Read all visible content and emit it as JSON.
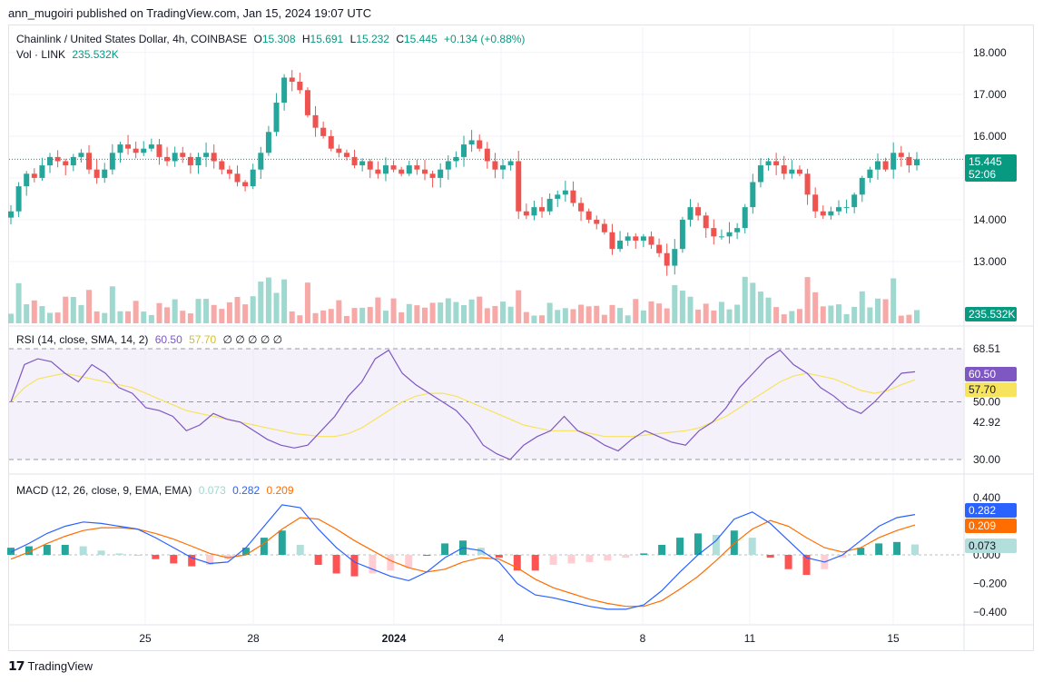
{
  "header": {
    "published": "ann_mugoiri published on TradingView.com, Jan 15, 2024 19:07 UTC"
  },
  "main": {
    "title": "Chainlink / United States Dollar, 4h, COINBASE",
    "o_label": "O",
    "o": "15.308",
    "h_label": "H",
    "h": "15.691",
    "l_label": "L",
    "l": "15.232",
    "c_label": "C",
    "c": "15.445",
    "change": "+0.134 (+0.88%)",
    "vol_label": "Vol · LINK",
    "vol": "235.532K",
    "price_badge": "15.445",
    "countdown_badge": "52:06",
    "vol_badge": "235.532K"
  },
  "rsi": {
    "label": "RSI (14, close, SMA, 14, 2)",
    "value": "60.50",
    "sma": "57.70",
    "extra": "∅ ∅ ∅ ∅ ∅",
    "value_badge": "60.50",
    "sma_badge": "57.70"
  },
  "macd": {
    "label": "MACD (12, 26, close, 9, EMA, EMA)",
    "hist": "0.073",
    "macd": "0.282",
    "signal": "0.209",
    "macd_badge": "0.282",
    "signal_badge": "0.209",
    "hist_badge": "0.073"
  },
  "footer": {
    "brand": "TradingView"
  },
  "colors": {
    "up": "#26a69a",
    "down": "#ef5350",
    "rsi": "#7e57c2",
    "rsi_sma": "#f7e35c",
    "macd": "#2962ff",
    "signal": "#ff6d00",
    "hist_up": "#26a69a",
    "hist_up_light": "#b2dfdb",
    "hist_down": "#ff5252",
    "hist_down_light": "#ffcdd2"
  },
  "chart_data": [
    {
      "type": "candlestick",
      "title": "Chainlink / United States Dollar, 4h, COINBASE",
      "x_ticks": [
        "25",
        "28",
        "2024",
        "4",
        "8",
        "11",
        "15"
      ],
      "y_ticks": [
        "18.000",
        "17.000",
        "16.000",
        "15.000",
        "14.000",
        "13.000"
      ],
      "ylim": [
        12.0,
        18.3
      ],
      "close_series": [
        14.2,
        14.8,
        15.1,
        15.0,
        15.3,
        15.5,
        15.4,
        15.3,
        15.5,
        15.6,
        15.2,
        15.0,
        15.2,
        15.6,
        15.8,
        15.7,
        15.6,
        15.7,
        15.8,
        15.5,
        15.4,
        15.6,
        15.5,
        15.3,
        15.5,
        15.6,
        15.4,
        15.2,
        15.1,
        14.9,
        14.8,
        15.2,
        15.6,
        16.1,
        16.8,
        17.4,
        17.3,
        17.1,
        16.5,
        16.2,
        16.0,
        15.7,
        15.6,
        15.5,
        15.3,
        15.4,
        15.2,
        15.1,
        15.3,
        15.2,
        15.1,
        15.3,
        15.2,
        15.1,
        15.0,
        15.2,
        15.4,
        15.5,
        15.8,
        15.9,
        15.7,
        15.4,
        15.2,
        15.3,
        15.4,
        14.2,
        14.1,
        14.3,
        14.2,
        14.5,
        14.6,
        14.7,
        14.4,
        14.2,
        14.0,
        13.9,
        13.7,
        13.3,
        13.5,
        13.6,
        13.5,
        13.6,
        13.4,
        13.2,
        12.9,
        13.3,
        14.0,
        14.3,
        14.1,
        13.8,
        13.6,
        13.6,
        13.7,
        13.8,
        14.3,
        14.9,
        15.3,
        15.4,
        15.3,
        15.1,
        15.2,
        15.1,
        14.6,
        14.2,
        14.1,
        14.2,
        14.3,
        14.3,
        14.6,
        15.0,
        15.2,
        15.4,
        15.2,
        15.6,
        15.5,
        15.3,
        15.445
      ],
      "volume_series": [
        235.532
      ]
    },
    {
      "type": "line",
      "title": "RSI (14, close, SMA, 14, 2)",
      "y_ticks": [
        "68.51",
        "60.50",
        "57.70",
        "50.00",
        "42.92",
        "30.00"
      ],
      "ylim": [
        30,
        70
      ],
      "series": [
        {
          "name": "RSI",
          "values": [
            50,
            63,
            65,
            64,
            60,
            57,
            63,
            60,
            55,
            53,
            48,
            47,
            45,
            40,
            42,
            46,
            44,
            43,
            40,
            37,
            35,
            34,
            35,
            40,
            45,
            52,
            57,
            65,
            68,
            60,
            56,
            53,
            50,
            47,
            42,
            35,
            32,
            30,
            35,
            38,
            40,
            45,
            40,
            38,
            35,
            33,
            37,
            40,
            38,
            36,
            35,
            40,
            43,
            48,
            55,
            60,
            65,
            68,
            63,
            60,
            55,
            52,
            48,
            46,
            50,
            55,
            60,
            60.5
          ]
        },
        {
          "name": "SMA",
          "values": [
            50,
            55,
            58,
            59,
            60,
            59,
            58,
            57,
            56,
            55,
            53,
            51,
            49,
            47,
            46,
            45,
            44,
            43,
            42,
            41,
            40,
            39,
            38.5,
            38,
            38,
            39,
            41,
            44,
            47,
            50,
            52,
            53,
            53,
            52,
            50,
            48,
            46,
            44,
            42,
            41,
            40,
            40,
            40,
            39,
            38,
            38,
            38,
            38.5,
            39,
            39.5,
            40,
            41,
            43,
            45,
            48,
            51,
            54,
            57,
            59,
            60,
            59,
            58,
            56,
            54,
            53,
            54,
            56,
            57.7
          ]
        }
      ]
    },
    {
      "type": "line",
      "title": "MACD (12, 26, close, 9, EMA, EMA)",
      "y_ticks": [
        "0.400",
        "0.200",
        "0.000",
        "−0.200",
        "−0.400"
      ],
      "ylim": [
        -0.45,
        0.42
      ],
      "series": [
        {
          "name": "MACD",
          "values": [
            0.02,
            0.08,
            0.15,
            0.2,
            0.23,
            0.22,
            0.2,
            0.18,
            0.12,
            0.05,
            -0.02,
            -0.06,
            -0.05,
            0.05,
            0.2,
            0.35,
            0.33,
            0.18,
            0.05,
            -0.05,
            -0.1,
            -0.15,
            -0.18,
            -0.12,
            -0.02,
            0.05,
            0.03,
            -0.05,
            -0.2,
            -0.28,
            -0.3,
            -0.33,
            -0.36,
            -0.38,
            -0.38,
            -0.35,
            -0.25,
            -0.12,
            0.0,
            0.1,
            0.25,
            0.3,
            0.22,
            0.1,
            -0.02,
            -0.05,
            0.0,
            0.1,
            0.2,
            0.26,
            0.282
          ]
        },
        {
          "name": "Signal",
          "values": [
            -0.03,
            0.02,
            0.08,
            0.13,
            0.17,
            0.19,
            0.19,
            0.18,
            0.15,
            0.11,
            0.06,
            0.01,
            -0.02,
            0.0,
            0.08,
            0.18,
            0.26,
            0.25,
            0.18,
            0.1,
            0.03,
            -0.04,
            -0.09,
            -0.12,
            -0.1,
            -0.05,
            -0.02,
            -0.03,
            -0.09,
            -0.17,
            -0.23,
            -0.27,
            -0.31,
            -0.34,
            -0.36,
            -0.36,
            -0.32,
            -0.24,
            -0.15,
            -0.04,
            0.08,
            0.18,
            0.24,
            0.2,
            0.12,
            0.05,
            0.02,
            0.05,
            0.12,
            0.17,
            0.209
          ]
        },
        {
          "name": "Histogram",
          "values": [
            0.05,
            0.06,
            0.07,
            0.07,
            0.06,
            0.03,
            0.01,
            0.0,
            -0.03,
            -0.06,
            -0.08,
            -0.07,
            -0.03,
            0.05,
            0.12,
            0.17,
            0.07,
            -0.07,
            -0.13,
            -0.15,
            -0.13,
            -0.11,
            -0.09,
            0.0,
            0.08,
            0.1,
            0.05,
            -0.02,
            -0.11,
            -0.11,
            -0.07,
            -0.06,
            -0.05,
            -0.04,
            -0.02,
            0.01,
            0.07,
            0.12,
            0.15,
            0.14,
            0.17,
            0.12,
            -0.02,
            -0.1,
            -0.14,
            -0.1,
            -0.02,
            0.05,
            0.08,
            0.09,
            0.073
          ]
        }
      ]
    }
  ]
}
